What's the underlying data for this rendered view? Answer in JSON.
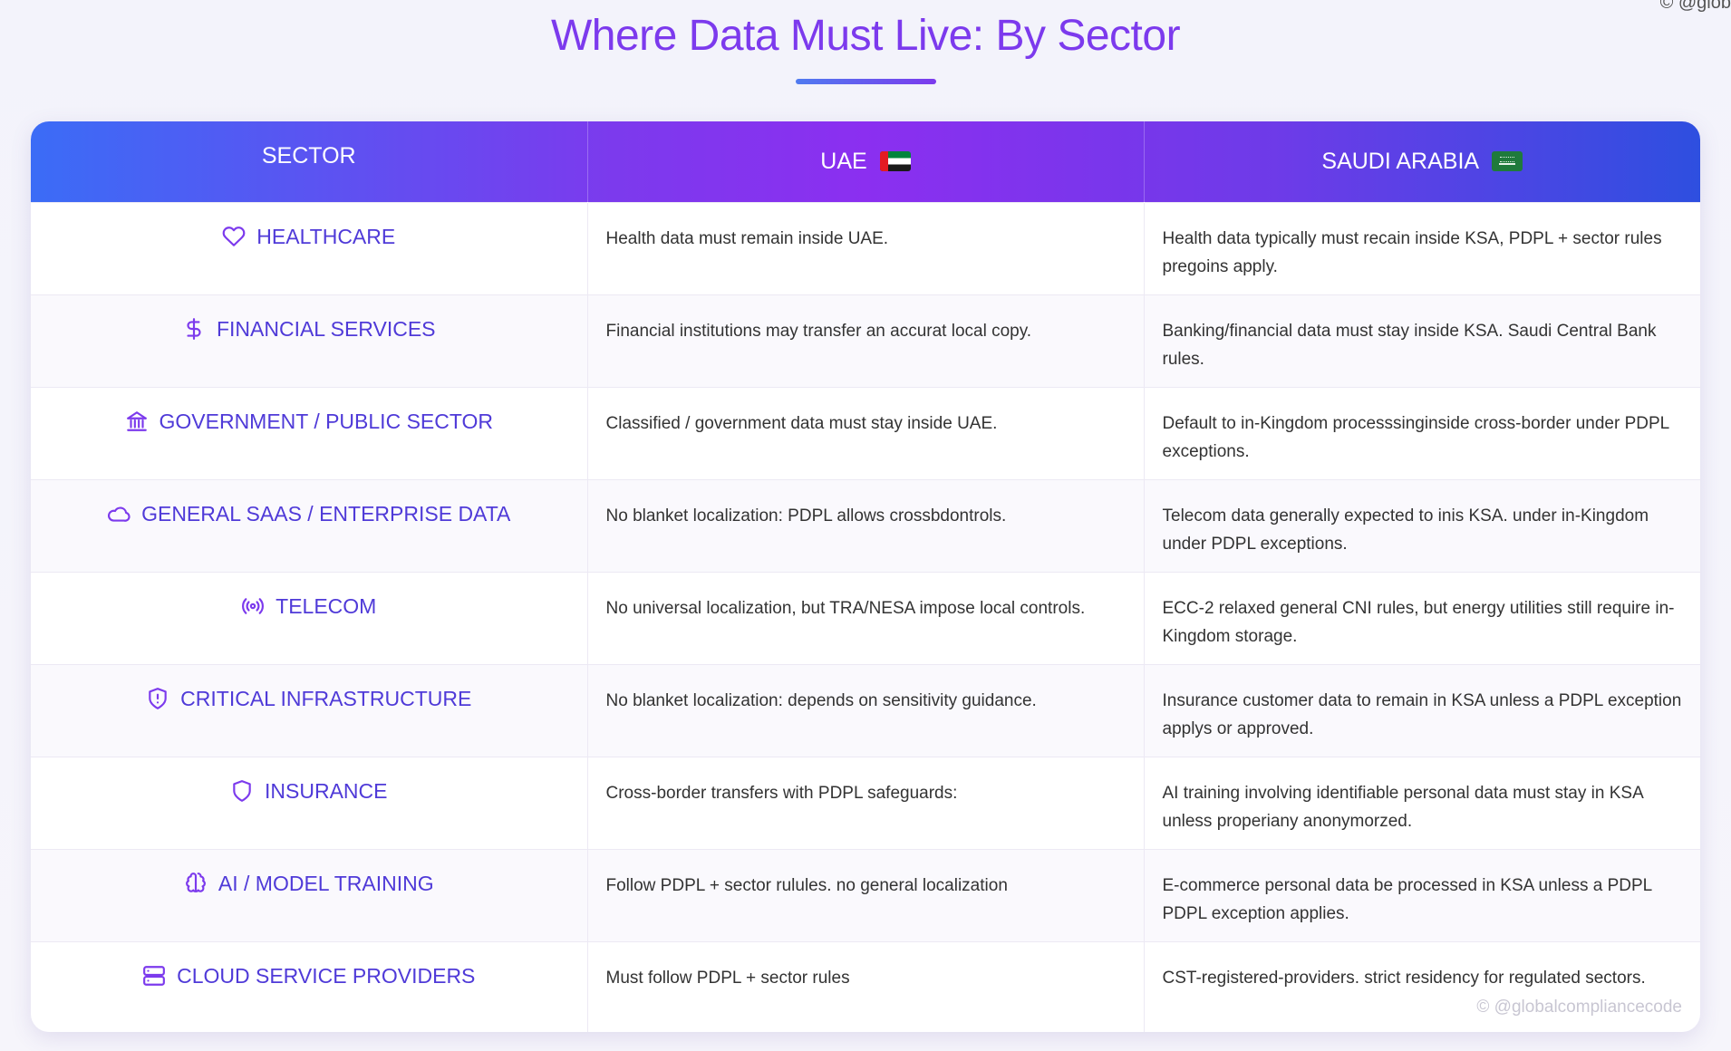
{
  "page": {
    "title": "Where Data Must Live: By Sector",
    "corner_mark": "© @glob",
    "watermark": "© @globalcompliancecode"
  },
  "table": {
    "headers": {
      "sector": "SECTOR",
      "uae": "UAE",
      "ksa": "SAUDI ARABIA"
    },
    "rows": [
      {
        "icon": "heart-icon",
        "sector": "HEALTHCARE",
        "uae": "Health data must remain inside UAE.",
        "ksa": "Health data typically must recain inside KSA, PDPL + sector rules pregoins apply."
      },
      {
        "icon": "dollar-icon",
        "sector": "FINANCIAL SERVICES",
        "uae": "Financial institutions may transfer an accurat local copy.",
        "ksa": "Banking/financial data must stay inside KSA. Saudi Central Bank rules."
      },
      {
        "icon": "bank-icon",
        "sector": "GOVERNMENT / PUBLIC SECTOR",
        "uae": "Classified / government data must stay inside UAE.",
        "ksa": "Default to in-Kingdom processsinginside cross-border under PDPL exceptions."
      },
      {
        "icon": "cloud-icon",
        "sector": "GENERAL SAAS / ENTERPRISE DATA",
        "uae": "No blanket localization: PDPL allows crossbdontrols.",
        "ksa": "Telecom data generally expected to inis KSA. under in-Kingdom under PDPL exceptions."
      },
      {
        "icon": "broadcast-icon",
        "sector": "TELECOM",
        "uae": "No universal localization, but TRA/NESA impose local controls.",
        "ksa": "ECC-2 relaxed general CNI rules, but energy utilities still require in-Kingdom storage."
      },
      {
        "icon": "shield-alert-icon",
        "sector": "CRITICAL INFRASTRUCTURE",
        "uae": "No blanket localization: depends on sensitivity guidance.",
        "ksa": "Insurance customer data to remain in KSA unless a PDPL exception applys or approved."
      },
      {
        "icon": "shield-icon",
        "sector": "INSURANCE",
        "uae": "Cross-border transfers with PDPL safeguards:",
        "ksa": "AI training involving identifiable personal data must stay in KSA unless properiany anonymorzed."
      },
      {
        "icon": "brain-icon",
        "sector": "AI / MODEL TRAINING",
        "uae": "Follow PDPL + sector rulules. no general localization",
        "ksa": "E-commerce personal data be processed in KSA unless a PDPL PDPL exception applies."
      },
      {
        "icon": "server-icon",
        "sector": "CLOUD SERVICE PROVIDERS",
        "uae": "Must follow PDPL + sector rules",
        "ksa": "CST-registered-providers. strict residency for regulated sectors."
      }
    ]
  },
  "colors": {
    "title": "#7c3aed",
    "sector_text": "#4f3ad8",
    "icon": "#7c3aed",
    "header_gradient": [
      "#3b6cf6",
      "#7c3aed",
      "#8b2ff0",
      "#2e4fe0"
    ]
  }
}
